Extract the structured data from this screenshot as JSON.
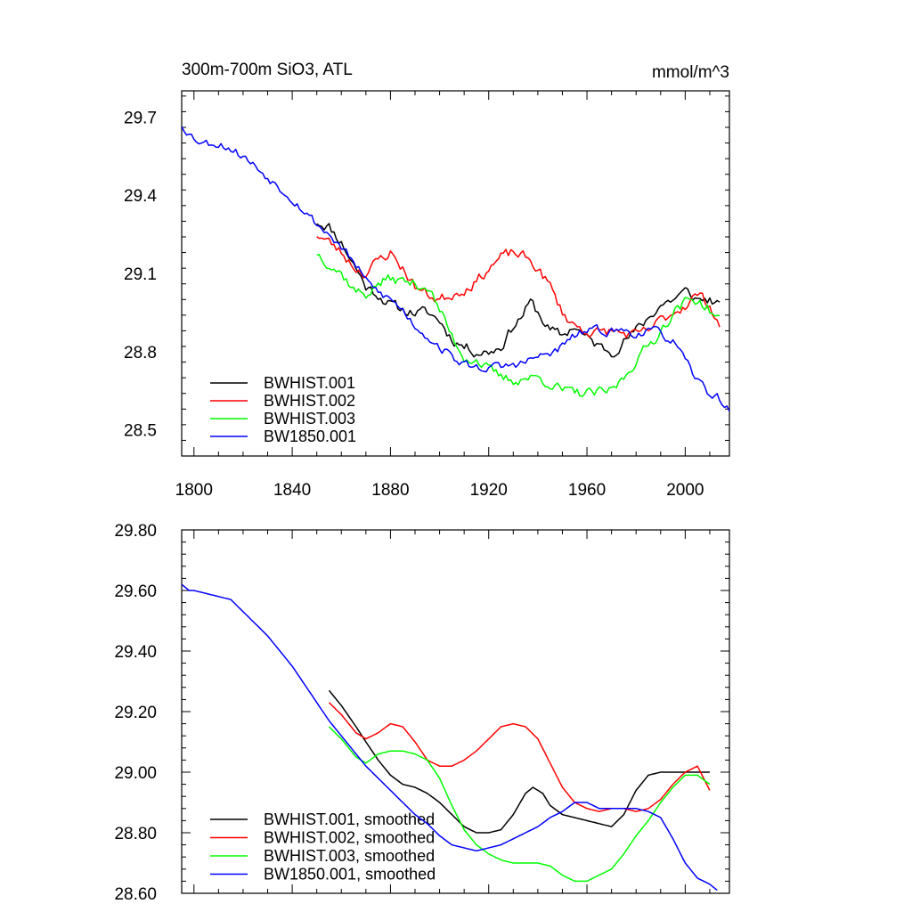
{
  "chart_data": [
    {
      "type": "line",
      "title_left": "300m-700m SiO3, ATL",
      "title_right": "mmol/m^3",
      "xlim": [
        1795,
        2018
      ],
      "ylim": [
        28.4,
        29.8
      ],
      "xticks": [
        1800,
        1840,
        1880,
        1920,
        1960,
        2000
      ],
      "xtick_labels": [
        "1800",
        "1840",
        "1880",
        "1920",
        "1960",
        "2000"
      ],
      "yticks": [
        28.5,
        28.8,
        29.1,
        29.4,
        29.7
      ],
      "ytick_labels": [
        "28.5",
        "28.8",
        "29.1",
        "29.4",
        "29.7"
      ],
      "legend_position": "bottom-left",
      "series": [
        {
          "name": "BWHIST.001",
          "color": "#000000",
          "noise": 0.018,
          "seed": 11,
          "x": [
            1850,
            1855,
            1860,
            1866,
            1870,
            1875,
            1880,
            1885,
            1890,
            1895,
            1900,
            1905,
            1910,
            1915,
            1920,
            1925,
            1930,
            1933,
            1937,
            1940,
            1945,
            1950,
            1955,
            1960,
            1965,
            1970,
            1975,
            1980,
            1985,
            1990,
            1995,
            2000,
            2005,
            2010,
            2014
          ],
          "y": [
            29.3,
            29.28,
            29.22,
            29.12,
            29.05,
            29.02,
            28.98,
            28.96,
            28.95,
            28.95,
            28.92,
            28.85,
            28.82,
            28.8,
            28.8,
            28.82,
            28.9,
            28.93,
            28.99,
            28.95,
            28.88,
            28.86,
            28.9,
            28.85,
            28.82,
            28.8,
            28.84,
            28.88,
            28.93,
            28.98,
            29.0,
            29.03,
            29.0,
            29.0,
            28.97
          ]
        },
        {
          "name": "BWHIST.002",
          "color": "#ff0000",
          "noise": 0.018,
          "seed": 23,
          "x": [
            1850,
            1855,
            1860,
            1866,
            1870,
            1875,
            1880,
            1885,
            1890,
            1895,
            1900,
            1905,
            1910,
            1915,
            1920,
            1925,
            1930,
            1935,
            1940,
            1945,
            1950,
            1955,
            1960,
            1965,
            1970,
            1975,
            1980,
            1985,
            1990,
            1995,
            2000,
            2005,
            2010,
            2014
          ],
          "y": [
            29.25,
            29.22,
            29.18,
            29.12,
            29.1,
            29.15,
            29.18,
            29.12,
            29.05,
            29.02,
            29.0,
            29.02,
            29.04,
            29.07,
            29.12,
            29.16,
            29.18,
            29.16,
            29.12,
            29.05,
            28.95,
            28.9,
            28.88,
            28.87,
            28.88,
            28.87,
            28.86,
            28.88,
            28.92,
            28.95,
            28.98,
            29.02,
            28.98,
            28.9
          ]
        },
        {
          "name": "BWHIST.003",
          "color": "#00ff00",
          "noise": 0.018,
          "seed": 37,
          "x": [
            1850,
            1855,
            1860,
            1866,
            1870,
            1875,
            1880,
            1885,
            1890,
            1895,
            1900,
            1905,
            1910,
            1915,
            1920,
            1925,
            1930,
            1935,
            1940,
            1945,
            1950,
            1955,
            1960,
            1965,
            1970,
            1975,
            1980,
            1985,
            1990,
            1995,
            2000,
            2005,
            2010,
            2014
          ],
          "y": [
            29.18,
            29.14,
            29.1,
            29.03,
            29.02,
            29.06,
            29.08,
            29.07,
            29.06,
            29.05,
            28.96,
            28.86,
            28.78,
            28.77,
            28.73,
            28.7,
            28.69,
            28.7,
            28.7,
            28.68,
            28.65,
            28.64,
            28.64,
            28.64,
            28.65,
            28.7,
            28.77,
            28.82,
            28.88,
            28.95,
            28.99,
            29.0,
            28.96,
            28.92
          ]
        },
        {
          "name": "BW1850.001",
          "color": "#0000ff",
          "noise": 0.015,
          "seed": 53,
          "x": [
            1795,
            1800,
            1805,
            1810,
            1815,
            1820,
            1825,
            1830,
            1835,
            1840,
            1845,
            1850,
            1855,
            1860,
            1866,
            1870,
            1875,
            1880,
            1885,
            1890,
            1895,
            1900,
            1905,
            1910,
            1915,
            1920,
            1925,
            1930,
            1935,
            1940,
            1945,
            1950,
            1955,
            1960,
            1965,
            1970,
            1975,
            1980,
            1985,
            1990,
            1995,
            2000,
            2005,
            2010,
            2014,
            2018
          ],
          "y": [
            29.67,
            29.62,
            29.6,
            29.6,
            29.58,
            29.55,
            29.51,
            29.47,
            29.43,
            29.39,
            29.34,
            29.29,
            29.25,
            29.2,
            29.13,
            29.07,
            29.03,
            29.0,
            28.96,
            28.9,
            28.86,
            28.82,
            28.78,
            28.75,
            28.74,
            28.74,
            28.74,
            28.75,
            28.76,
            28.78,
            28.79,
            28.82,
            28.86,
            28.88,
            28.88,
            28.88,
            28.88,
            28.87,
            28.88,
            28.87,
            28.84,
            28.76,
            28.69,
            28.64,
            28.62,
            28.57
          ]
        }
      ]
    },
    {
      "type": "line",
      "xlim": [
        1795,
        2018
      ],
      "ylim": [
        28.6,
        29.8
      ],
      "xticks": [
        1800,
        1840,
        1880,
        1920,
        1960,
        2000
      ],
      "yticks": [
        28.6,
        28.8,
        29.0,
        29.2,
        29.4,
        29.6,
        29.8
      ],
      "ytick_labels": [
        "28.60",
        "28.80",
        "29.00",
        "29.20",
        "29.40",
        "29.60",
        "29.80"
      ],
      "legend_position": "bottom-left",
      "series": [
        {
          "name": "BWHIST.001, smoothed",
          "color": "#000000",
          "x": [
            1855,
            1860,
            1866,
            1870,
            1875,
            1880,
            1885,
            1890,
            1895,
            1900,
            1905,
            1910,
            1915,
            1920,
            1925,
            1930,
            1935,
            1938,
            1942,
            1945,
            1950,
            1955,
            1960,
            1965,
            1970,
            1975,
            1980,
            1985,
            1990,
            1995,
            2000,
            2005,
            2010
          ],
          "y": [
            29.27,
            29.22,
            29.15,
            29.1,
            29.04,
            28.99,
            28.96,
            28.95,
            28.93,
            28.9,
            28.86,
            28.82,
            28.8,
            28.8,
            28.81,
            28.86,
            28.93,
            28.95,
            28.93,
            28.89,
            28.86,
            28.85,
            28.84,
            28.83,
            28.82,
            28.86,
            28.94,
            28.99,
            29.0,
            29.0,
            29.0,
            29.0,
            29.0
          ]
        },
        {
          "name": "BWHIST.002, smoothed",
          "color": "#ff0000",
          "x": [
            1855,
            1860,
            1866,
            1870,
            1875,
            1880,
            1885,
            1890,
            1895,
            1900,
            1905,
            1910,
            1915,
            1920,
            1925,
            1930,
            1935,
            1940,
            1945,
            1950,
            1955,
            1960,
            1965,
            1970,
            1975,
            1980,
            1985,
            1990,
            1995,
            2000,
            2005,
            2010
          ],
          "y": [
            29.23,
            29.19,
            29.13,
            29.11,
            29.13,
            29.16,
            29.15,
            29.1,
            29.04,
            29.02,
            29.02,
            29.04,
            29.07,
            29.11,
            29.15,
            29.16,
            29.15,
            29.11,
            29.03,
            28.95,
            28.9,
            28.88,
            28.87,
            28.88,
            28.88,
            28.87,
            28.88,
            28.91,
            28.96,
            29.0,
            29.02,
            28.94
          ]
        },
        {
          "name": "BWHIST.003, smoothed",
          "color": "#00ff00",
          "x": [
            1855,
            1860,
            1866,
            1870,
            1875,
            1880,
            1885,
            1890,
            1895,
            1900,
            1905,
            1910,
            1915,
            1920,
            1925,
            1930,
            1935,
            1940,
            1945,
            1950,
            1955,
            1960,
            1965,
            1970,
            1975,
            1980,
            1985,
            1990,
            1995,
            2000,
            2005,
            2010
          ],
          "y": [
            29.15,
            29.11,
            29.05,
            29.03,
            29.06,
            29.07,
            29.07,
            29.06,
            29.04,
            28.98,
            28.89,
            28.81,
            28.76,
            28.73,
            28.71,
            28.7,
            28.7,
            28.7,
            28.69,
            28.66,
            28.64,
            28.64,
            28.66,
            28.68,
            28.73,
            28.79,
            28.84,
            28.9,
            28.95,
            28.99,
            28.99,
            28.96
          ]
        },
        {
          "name": "BW1850.001, smoothed",
          "color": "#0000ff",
          "x": [
            1795,
            1798,
            1800,
            1805,
            1810,
            1815,
            1820,
            1825,
            1830,
            1835,
            1840,
            1845,
            1850,
            1855,
            1860,
            1866,
            1870,
            1875,
            1880,
            1885,
            1890,
            1895,
            1900,
            1905,
            1910,
            1915,
            1920,
            1925,
            1930,
            1935,
            1940,
            1945,
            1950,
            1955,
            1960,
            1965,
            1970,
            1975,
            1980,
            1985,
            1990,
            1995,
            2000,
            2005,
            2010,
            2013
          ],
          "y": [
            29.62,
            29.6,
            29.6,
            29.59,
            29.58,
            29.57,
            29.53,
            29.49,
            29.45,
            29.4,
            29.35,
            29.29,
            29.23,
            29.17,
            29.12,
            29.06,
            29.02,
            28.98,
            28.94,
            28.9,
            28.86,
            28.83,
            28.79,
            28.76,
            28.75,
            28.74,
            28.75,
            28.76,
            28.78,
            28.8,
            28.82,
            28.85,
            28.87,
            28.9,
            28.9,
            28.88,
            28.88,
            28.88,
            28.88,
            28.87,
            28.85,
            28.78,
            28.7,
            28.65,
            28.63,
            28.61
          ]
        }
      ]
    }
  ]
}
